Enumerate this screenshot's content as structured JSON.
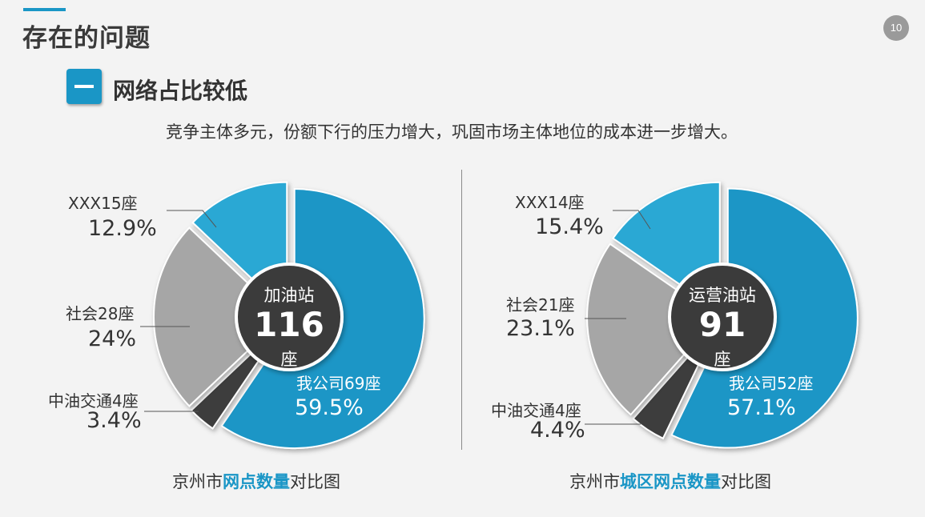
{
  "header": {
    "title": "存在的问题",
    "page_number": "10"
  },
  "section": {
    "icon_text": "一",
    "title": "网络占比较低"
  },
  "subtitle": "竞争主体多元，份额下行的压力增大，巩固市场主体地位的成本进一步增大。",
  "captions": [
    {
      "prefix": "京州市",
      "highlight": "网点数量",
      "suffix": "对比图"
    },
    {
      "prefix": "京州市",
      "highlight": "城区网点数量",
      "suffix": "对比图"
    }
  ],
  "colors": {
    "accent": "#1a96c6",
    "xxx": "#2aa8d4",
    "shehui": "#a6a6a6",
    "zhongyou": "#3d3d3d",
    "center": "#3b3b3b"
  },
  "chart_data": [
    {
      "type": "pie",
      "center_label": {
        "top": "加油站",
        "value": "116",
        "unit": "座"
      },
      "slices": [
        {
          "name": "我公司69座",
          "value": 69,
          "percent": "59.5%"
        },
        {
          "name": "中油交通4座",
          "value": 4,
          "percent": "3.4%"
        },
        {
          "name": "社会28座",
          "value": 28,
          "percent": "24%"
        },
        {
          "name": "XXX15座",
          "value": 15,
          "percent": "12.9%"
        }
      ]
    },
    {
      "type": "pie",
      "center_label": {
        "top": "运营油站",
        "value": "91",
        "unit": "座"
      },
      "slices": [
        {
          "name": "我公司52座",
          "value": 52,
          "percent": "57.1%"
        },
        {
          "name": "中油交通4座",
          "value": 4,
          "percent": "4.4%"
        },
        {
          "name": "社会21座",
          "value": 21,
          "percent": "23.1%"
        },
        {
          "name": "XXX14座",
          "value": 14,
          "percent": "15.4%"
        }
      ]
    }
  ]
}
